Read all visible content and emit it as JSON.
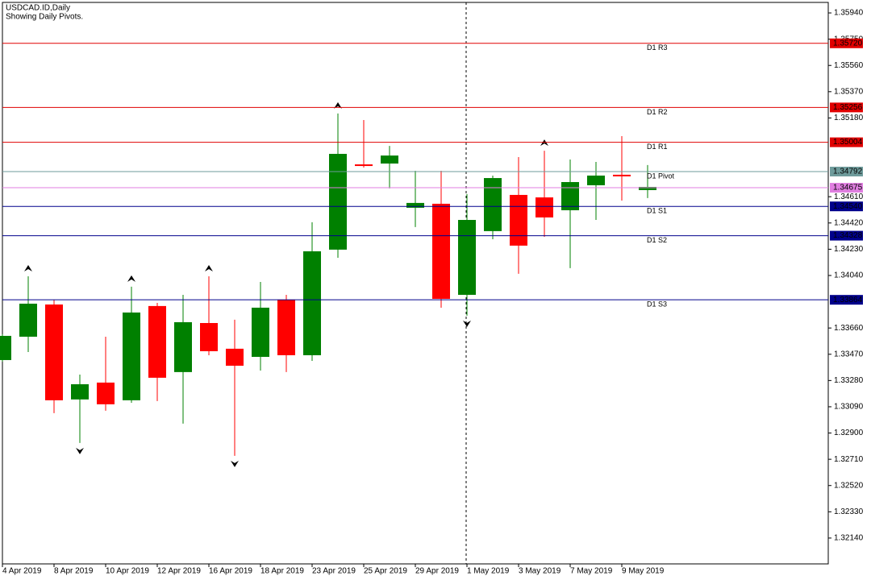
{
  "chart_data": {
    "type": "candlestick",
    "title": "USDCAD.ID,Daily",
    "subtitle": "Showing Daily Pivots.",
    "categories": [
      "4 Apr 2019",
      null,
      "8 Apr 2019",
      null,
      "10 Apr 2019",
      null,
      "12 Apr 2019",
      null,
      "16 Apr 2019",
      null,
      "18 Apr 2019",
      null,
      "23 Apr 2019",
      null,
      "25 Apr 2019",
      null,
      "29 Apr 2019",
      null,
      "1 May 2019",
      null,
      "3 May 2019",
      null,
      "7 May 2019",
      null,
      "9 May 2019",
      null
    ],
    "open": [
      1.33428,
      1.33597,
      1.3383,
      1.33143,
      1.33265,
      1.33137,
      1.33819,
      1.33341,
      1.33696,
      1.3351,
      1.33451,
      1.33865,
      1.33463,
      1.34227,
      1.34844,
      1.3485,
      1.3453,
      1.34559,
      1.339,
      1.34361,
      1.34623,
      1.34605,
      1.34512,
      1.34693,
      1.34769,
      1.34658
    ],
    "high": [
      1.33615,
      1.34034,
      1.33865,
      1.33323,
      1.33597,
      1.33959,
      1.33842,
      1.339,
      1.34034,
      1.3372,
      1.33993,
      1.339,
      1.34425,
      1.35212,
      1.35165,
      1.34978,
      1.34798,
      1.34798,
      1.34629,
      1.34763,
      1.34897,
      1.34943,
      1.34879,
      1.34862,
      1.35048,
      1.34839
    ],
    "low": [
      1.33417,
      1.33486,
      1.33044,
      1.32828,
      1.33061,
      1.33119,
      1.33131,
      1.32968,
      1.33463,
      1.32735,
      1.33352,
      1.33341,
      1.33422,
      1.34168,
      1.34821,
      1.3467,
      1.3439,
      1.33807,
      1.33749,
      1.34302,
      1.34052,
      1.3432,
      1.34093,
      1.34442,
      1.34582,
      1.346
    ],
    "close": [
      1.33603,
      1.33836,
      1.33137,
      1.33253,
      1.33108,
      1.33772,
      1.333,
      1.33702,
      1.33492,
      1.33387,
      1.33807,
      1.33463,
      1.34215,
      1.3492,
      1.34833,
      1.34908,
      1.34565,
      1.33871,
      1.34442,
      1.34745,
      1.34256,
      1.3446,
      1.34716,
      1.34763,
      1.34763,
      1.34681
    ],
    "up_color": "#008000",
    "down_color": "#ff0000",
    "ylim": [
      1.31953,
      1.36016
    ],
    "yticks": [
      {
        "value": 1.3594,
        "label": "1.35940"
      },
      {
        "value": 1.3575,
        "label": "1.35750"
      },
      {
        "value": 1.3556,
        "label": "1.35560"
      },
      {
        "value": 1.3537,
        "label": "1.35370"
      },
      {
        "value": 1.3518,
        "label": "1.35180"
      },
      {
        "value": 1.3461,
        "label": "1.34610"
      },
      {
        "value": 1.3442,
        "label": "1.34420"
      },
      {
        "value": 1.3423,
        "label": "1.34230"
      },
      {
        "value": 1.3404,
        "label": "1.34040"
      },
      {
        "value": 1.3366,
        "label": "1.33660"
      },
      {
        "value": 1.3347,
        "label": "1.33470"
      },
      {
        "value": 1.3328,
        "label": "1.33280"
      },
      {
        "value": 1.3309,
        "label": "1.33090"
      },
      {
        "value": 1.329,
        "label": "1.32900"
      },
      {
        "value": 1.3271,
        "label": "1.32710"
      },
      {
        "value": 1.3252,
        "label": "1.32520"
      },
      {
        "value": 1.3233,
        "label": "1.32330"
      },
      {
        "value": 1.3214,
        "label": "1.32140"
      }
    ],
    "levels": [
      {
        "name": "D1 R3",
        "value": 1.3572,
        "value_label": "1.35720",
        "color": "#e00000"
      },
      {
        "name": "D1 R2",
        "value": 1.35256,
        "value_label": "1.35256",
        "color": "#e00000"
      },
      {
        "name": "D1 R1",
        "value": 1.35004,
        "value_label": "1.35004",
        "color": "#e00000"
      },
      {
        "name": "D1 Pivot",
        "value": 1.34792,
        "value_label": "1.34792",
        "color": "#6e9b9b"
      },
      {
        "name": "D1 S1",
        "value": 1.3454,
        "value_label": "1.34540",
        "color": "#00008b"
      },
      {
        "name": "D1 S2",
        "value": 1.34328,
        "value_label": "1.34328",
        "color": "#00008b"
      },
      {
        "name": "D1 S3",
        "value": 1.33864,
        "value_label": "1.33864",
        "color": "#00008b"
      }
    ],
    "current_price": {
      "value": 1.34675,
      "label": "1.34675",
      "color": "#e07ee0"
    }
  }
}
